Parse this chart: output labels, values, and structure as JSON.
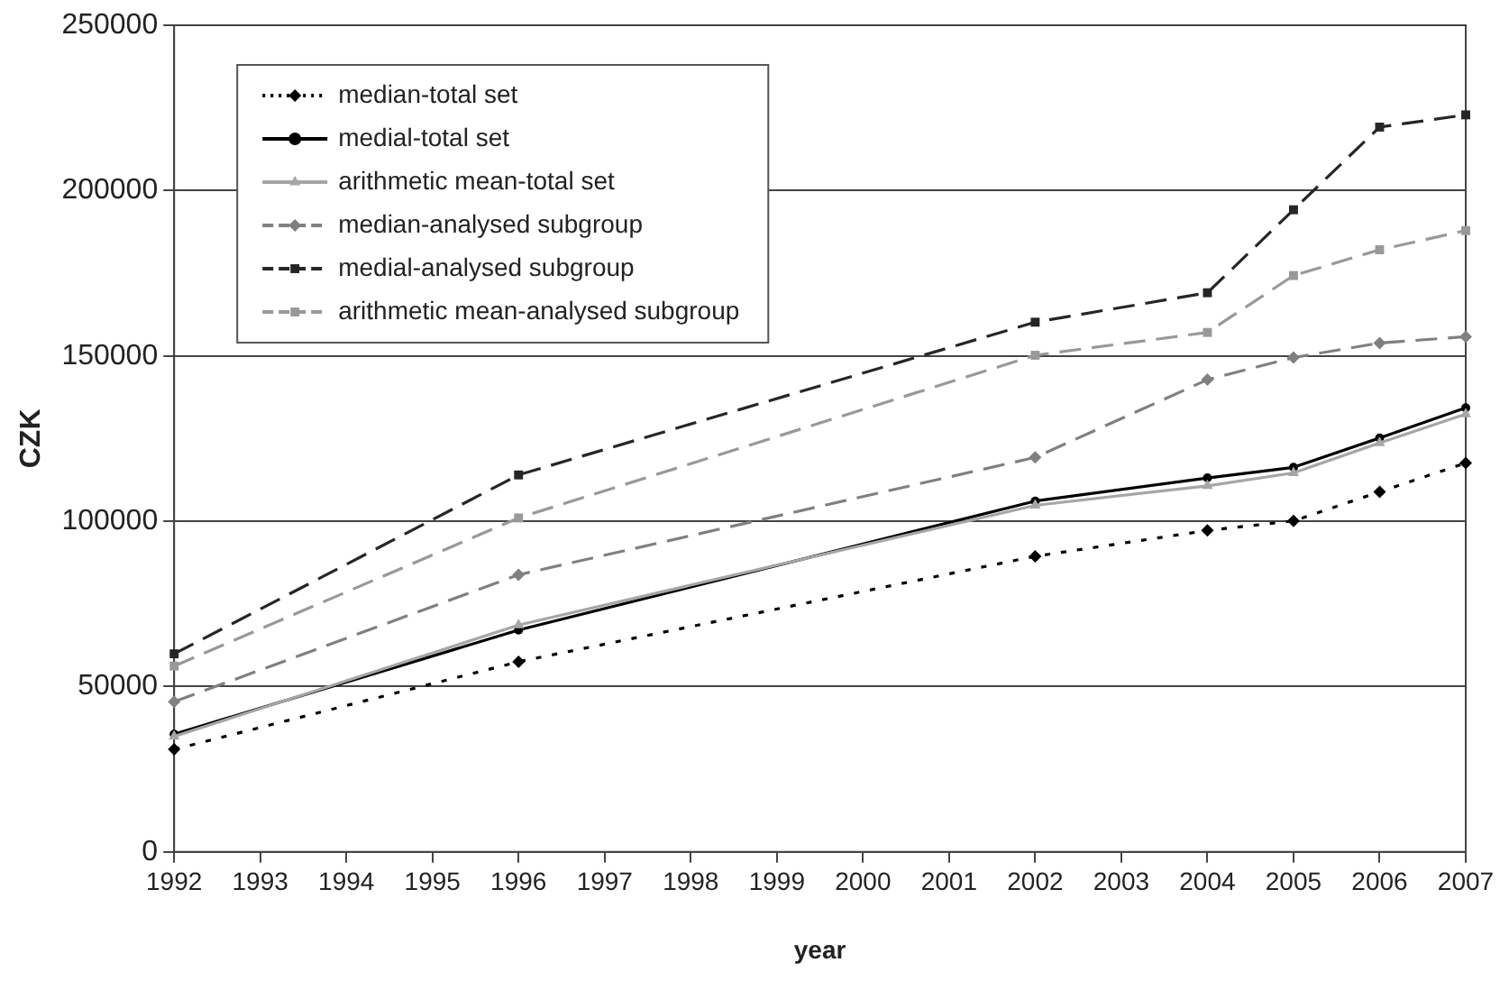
{
  "chart_data": {
    "type": "line",
    "xlabel": "year",
    "ylabel": "CZK",
    "x": [
      1992,
      1996,
      2002,
      2004,
      2005,
      2006,
      2007
    ],
    "xlim": [
      1992,
      2007
    ],
    "xticks": [
      1992,
      1993,
      1994,
      1995,
      1996,
      1997,
      1998,
      1999,
      2000,
      2001,
      2002,
      2003,
      2004,
      2005,
      2006,
      2007
    ],
    "ylim": [
      0,
      250000
    ],
    "yticks": [
      0,
      50000,
      100000,
      150000,
      200000,
      250000
    ],
    "grid": "y",
    "legend": "top left",
    "series": [
      {
        "name": "median-total set",
        "color": "#000000",
        "line_style": "dotted",
        "marker": "diamond",
        "values": [
          31000,
          57500,
          89400,
          97200,
          100100,
          108900,
          117600
        ]
      },
      {
        "name": "medial-total set",
        "color": "#000000",
        "line_style": "solid",
        "marker": "circle",
        "values": [
          35600,
          67100,
          106100,
          113100,
          116300,
          125200,
          134300
        ]
      },
      {
        "name": "arithmetic mean-total set",
        "color": "#a6a6a6",
        "line_style": "solid",
        "marker": "triangle",
        "values": [
          34900,
          68600,
          104800,
          110700,
          114600,
          123700,
          132400
        ]
      },
      {
        "name": "median-analysed subgroup",
        "color": "#808080",
        "line_style": "dashed",
        "marker": "diamond",
        "values": [
          45400,
          83800,
          119300,
          142800,
          149500,
          153900,
          155800
        ]
      },
      {
        "name": "medial-analysed subgroup",
        "color": "#262626",
        "line_style": "dashed",
        "marker": "square",
        "values": [
          59900,
          114000,
          160200,
          169100,
          194200,
          219200,
          222900
        ]
      },
      {
        "name": "arithmetic mean-analysed subgroup",
        "color": "#999999",
        "line_style": "dashed",
        "marker": "square",
        "values": [
          56200,
          101000,
          150200,
          157100,
          174300,
          182100,
          187900
        ]
      }
    ]
  }
}
